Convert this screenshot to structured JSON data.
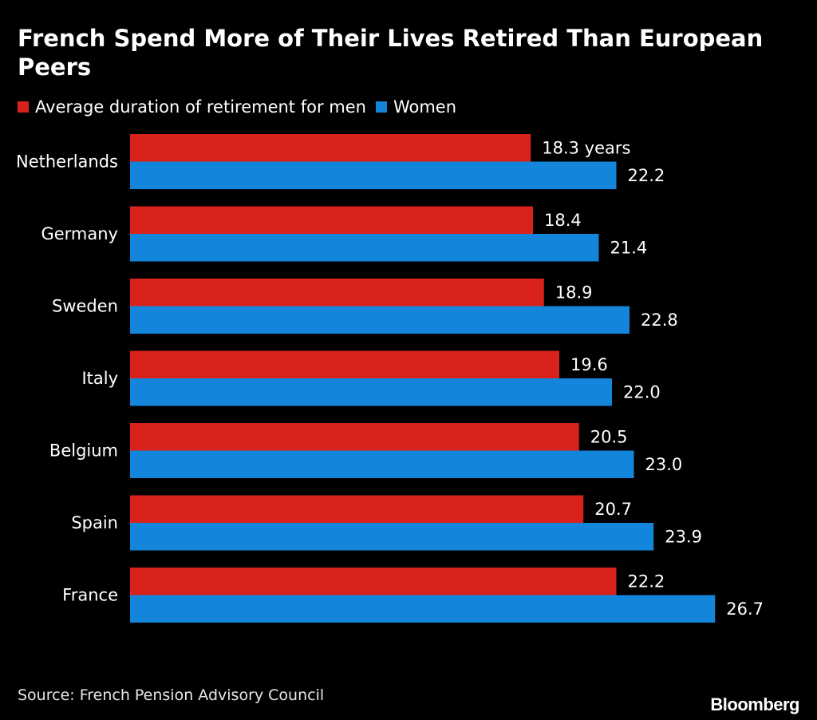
{
  "header": {
    "title": "French Spend More of Their Lives Retired Than European Peers"
  },
  "legend": {
    "men_label": "Average duration of retirement for men",
    "women_label": "Women"
  },
  "footer": {
    "source": "Source: French Pension Advisory Council",
    "logo": "Bloomberg"
  },
  "colors": {
    "men": "#d9221c",
    "women": "#1386dc",
    "background": "#000000",
    "text": "#ffffff"
  },
  "chart_data": {
    "type": "bar",
    "orientation": "horizontal",
    "title": "French Spend More of Their Lives Retired Than European Peers",
    "categories": [
      "Netherlands",
      "Germany",
      "Sweden",
      "Italy",
      "Belgium",
      "Spain",
      "France"
    ],
    "series": [
      {
        "name": "Average duration of retirement for men",
        "values": [
          18.3,
          18.4,
          18.9,
          19.6,
          20.5,
          20.7,
          22.2
        ],
        "labels": [
          "18.3 years",
          "18.4",
          "18.9",
          "19.6",
          "20.5",
          "20.7",
          "22.2"
        ]
      },
      {
        "name": "Women",
        "values": [
          22.2,
          21.4,
          22.8,
          22.0,
          23.0,
          23.9,
          26.7
        ],
        "labels": [
          "22.2",
          "21.4",
          "22.8",
          "22.0",
          "23.0",
          "23.9",
          "26.7"
        ]
      }
    ],
    "xlim": [
      0,
      26.7
    ],
    "xlabel": "",
    "ylabel": "",
    "legend_position": "top-left",
    "grid": false
  }
}
